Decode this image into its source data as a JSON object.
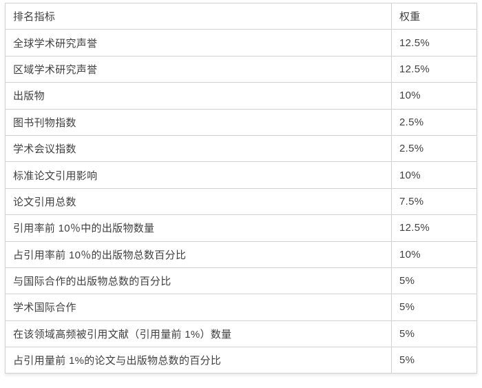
{
  "page": {
    "background_color": "#ffffff"
  },
  "table": {
    "headers": [
      "排名指标",
      "权重"
    ],
    "rows": [
      {
        "indicator": "全球学术研究声誉",
        "weight": "12.5%"
      },
      {
        "indicator": "区域学术研究声誉",
        "weight": "12.5%"
      },
      {
        "indicator": "出版物",
        "weight": "10%"
      },
      {
        "indicator": "图书刊物指数",
        "weight": "2.5%"
      },
      {
        "indicator": "学术会议指数",
        "weight": "2.5%"
      },
      {
        "indicator": "标准论文引用影响",
        "weight": "10%"
      },
      {
        "indicator": "论文引用总数",
        "weight": "7.5%"
      },
      {
        "indicator": "引用率前 10％中的出版物数量",
        "weight": "12.5%"
      },
      {
        "indicator": "占引用率前 10％的出版物总数百分比",
        "weight": "10%"
      },
      {
        "indicator": "与国际合作的出版物总数的百分比",
        "weight": "5%"
      },
      {
        "indicator": "学术国际合作",
        "weight": "5%"
      },
      {
        "indicator": "在该领域高频被引用文献（引用量前 1%）数量",
        "weight": "5%"
      },
      {
        "indicator": "占引用量前 1%的论文与出版物总数的百分比",
        "weight": "5%"
      }
    ],
    "colors": {
      "border": "#d2d2d2",
      "text": "#404040",
      "cell_background": "#ffffff"
    }
  }
}
